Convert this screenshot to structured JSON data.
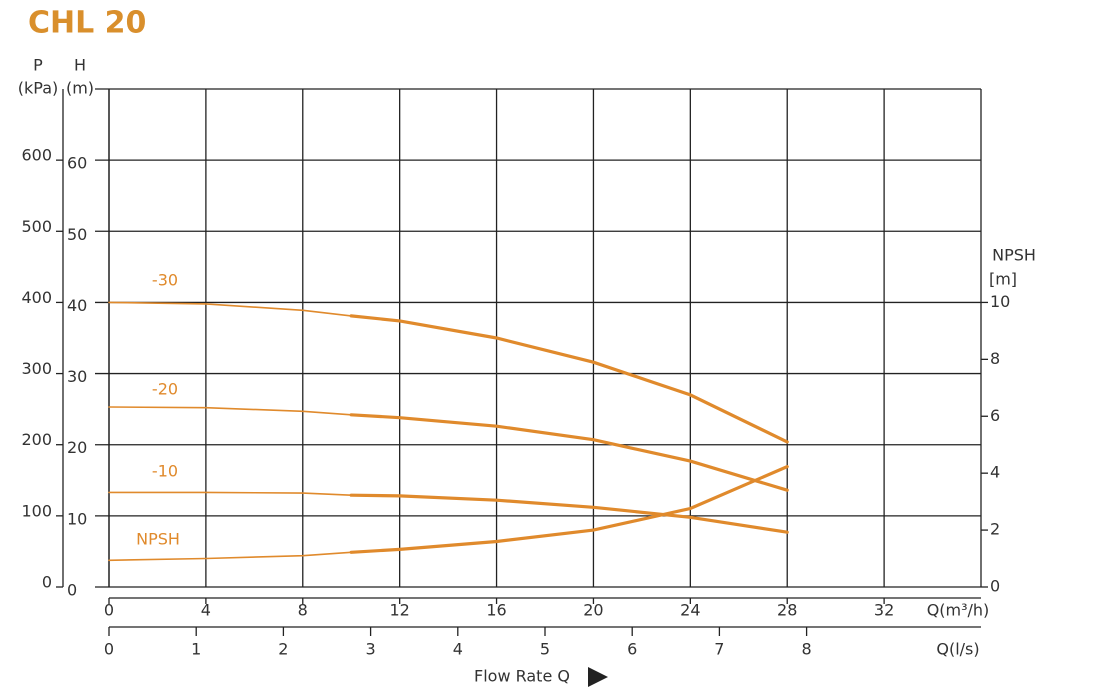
{
  "chart_data": {
    "type": "line",
    "title": "CHL 20",
    "plabel": "P",
    "punit": "(kPa)",
    "ylabel": "H",
    "yunit": "(m)",
    "y2label": "NPSH",
    "y2unit": "[m]",
    "xlabel": "Q(m³/h)",
    "x2label": "Q(l/s)",
    "flow_label": "Flow Rate Q",
    "xlim": [
      0,
      36
    ],
    "xticks": [
      0,
      4,
      8,
      12,
      16,
      20,
      24,
      28,
      32
    ],
    "x2lim": [
      0,
      10
    ],
    "x2ticks": [
      0,
      1,
      2,
      3,
      4,
      5,
      6,
      7,
      8
    ],
    "ylim": [
      0,
      70
    ],
    "yticks": [
      0,
      10,
      20,
      30,
      40,
      50,
      60
    ],
    "plim": [
      0,
      700
    ],
    "pticks": [
      0,
      100,
      200,
      300,
      400,
      500,
      600
    ],
    "y2lim": [
      0,
      17.5
    ],
    "y2ticks": [
      0,
      2,
      4,
      6,
      8,
      10
    ],
    "grid": true,
    "x": [
      0,
      4,
      8,
      10,
      12,
      16,
      20,
      24,
      28
    ],
    "series": [
      {
        "name": "-30",
        "color": "#e08a2c",
        "values": [
          40,
          39.8,
          38.9,
          38.1,
          37.4,
          35.0,
          31.6,
          27.0,
          20.4
        ]
      },
      {
        "name": "-20",
        "color": "#e08a2c",
        "values": [
          25.3,
          25.2,
          24.7,
          24.2,
          23.8,
          22.6,
          20.7,
          17.7,
          13.6
        ]
      },
      {
        "name": "-10",
        "color": "#e08a2c",
        "values": [
          13.3,
          13.3,
          13.2,
          12.9,
          12.8,
          12.2,
          11.2,
          9.8,
          7.7
        ]
      },
      {
        "name": "NPSH",
        "color": "#e08a2c",
        "axis": "y2",
        "values": [
          0.94,
          1.0,
          1.1,
          1.22,
          1.32,
          1.6,
          2.0,
          2.76,
          4.23
        ]
      }
    ]
  }
}
